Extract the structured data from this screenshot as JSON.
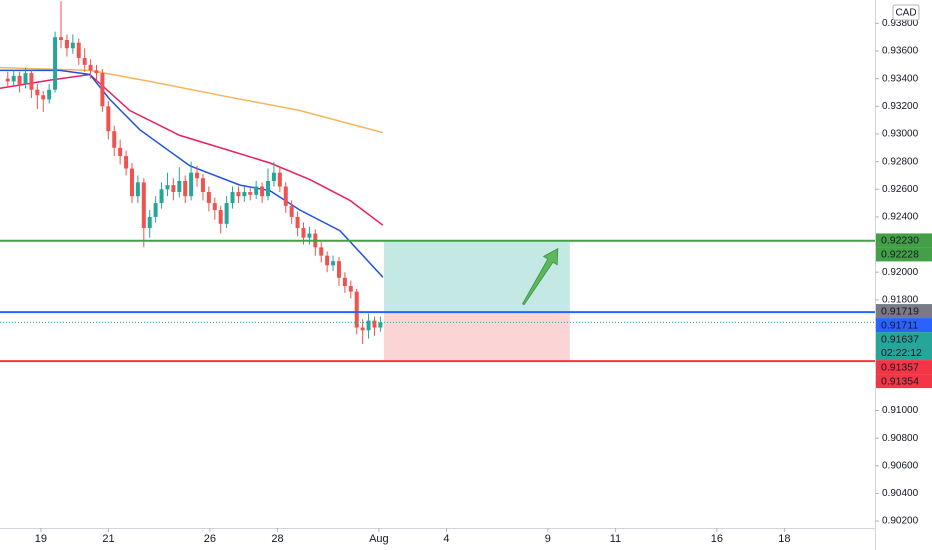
{
  "chart_data": {
    "type": "candlestick",
    "currency": "CAD",
    "xlim": [
      -1.21,
      24.68
    ],
    "ylim": [
      0.9015,
      0.93969
    ],
    "xticks": [
      {
        "value": 0,
        "label": "19"
      },
      {
        "value": 2,
        "label": "21"
      },
      {
        "value": 5,
        "label": "26"
      },
      {
        "value": 7,
        "label": "28"
      },
      {
        "value": 10,
        "label": "Aug"
      },
      {
        "value": 12,
        "label": "4"
      },
      {
        "value": 15,
        "label": "9"
      },
      {
        "value": 17,
        "label": "11"
      },
      {
        "value": 20,
        "label": "16"
      },
      {
        "value": 22,
        "label": "18"
      }
    ],
    "yticks": [
      {
        "value": 0.902,
        "label": "0.90200"
      },
      {
        "value": 0.904,
        "label": "0.90400"
      },
      {
        "value": 0.906,
        "label": "0.90600"
      },
      {
        "value": 0.908,
        "label": "0.90800"
      },
      {
        "value": 0.91,
        "label": "0.91000"
      },
      {
        "value": 0.912,
        "label": "0.91200"
      },
      {
        "value": 0.914,
        "label": "0.91400"
      },
      {
        "value": 0.916,
        "label": "0.91600"
      },
      {
        "value": 0.918,
        "label": "0.91800"
      },
      {
        "value": 0.92,
        "label": "0.92000"
      },
      {
        "value": 0.922,
        "label": "0.92200"
      },
      {
        "value": 0.924,
        "label": "0.92400"
      },
      {
        "value": 0.926,
        "label": "0.92600"
      },
      {
        "value": 0.928,
        "label": "0.92800"
      },
      {
        "value": 0.93,
        "label": "0.93000"
      },
      {
        "value": 0.932,
        "label": "0.93200"
      },
      {
        "value": 0.934,
        "label": "0.93400"
      },
      {
        "value": 0.936,
        "label": "0.93600"
      },
      {
        "value": 0.938,
        "label": "0.93800"
      }
    ],
    "up_color": "#26a69a",
    "down_color": "#ef5350",
    "x": [
      -0.98,
      -0.805,
      -0.63,
      -0.455,
      -0.28,
      -0.105,
      0.07,
      0.245,
      0.42,
      0.595,
      0.77,
      0.945,
      1.12,
      1.295,
      1.47,
      1.645,
      1.82,
      1.995,
      2.17,
      2.345,
      2.52,
      2.695,
      2.87,
      3.045,
      3.22,
      3.395,
      3.57,
      3.745,
      3.92,
      4.095,
      4.27,
      4.445,
      4.62,
      4.795,
      4.97,
      5.145,
      5.32,
      5.495,
      5.67,
      5.845,
      6.02,
      6.195,
      6.37,
      6.545,
      6.72,
      6.895,
      7.07,
      7.245,
      7.42,
      7.595,
      7.77,
      7.945,
      8.12,
      8.295,
      8.47,
      8.645,
      8.82,
      8.995,
      9.17,
      9.345,
      9.52,
      9.695,
      9.87,
      10.045
    ],
    "ohlc": [
      [
        0.934,
        0.9345,
        0.9334,
        0.9338
      ],
      [
        0.9338,
        0.9346,
        0.9335,
        0.9342
      ],
      [
        0.9342,
        0.9345,
        0.933,
        0.9336
      ],
      [
        0.9336,
        0.9348,
        0.9333,
        0.9344
      ],
      [
        0.9344,
        0.9346,
        0.9326,
        0.9332
      ],
      [
        0.9332,
        0.9336,
        0.9318,
        0.9328
      ],
      [
        0.9328,
        0.9331,
        0.9316,
        0.9325
      ],
      [
        0.9325,
        0.9336,
        0.9322,
        0.9332
      ],
      [
        0.9332,
        0.9374,
        0.933,
        0.937
      ],
      [
        0.937,
        0.9396,
        0.9362,
        0.9368
      ],
      [
        0.9368,
        0.9372,
        0.9356,
        0.9362
      ],
      [
        0.9362,
        0.9372,
        0.9358,
        0.9366
      ],
      [
        0.9366,
        0.9369,
        0.935,
        0.9355
      ],
      [
        0.9355,
        0.9362,
        0.9345,
        0.935
      ],
      [
        0.935,
        0.9354,
        0.934,
        0.9346
      ],
      [
        0.9346,
        0.935,
        0.9338,
        0.9344
      ],
      [
        0.9344,
        0.9347,
        0.9316,
        0.932
      ],
      [
        0.932,
        0.9324,
        0.9296,
        0.9302
      ],
      [
        0.9302,
        0.9306,
        0.9284,
        0.929
      ],
      [
        0.929,
        0.9296,
        0.9278,
        0.9284
      ],
      [
        0.9284,
        0.9288,
        0.927,
        0.9275
      ],
      [
        0.9275,
        0.9279,
        0.925,
        0.9255
      ],
      [
        0.9255,
        0.927,
        0.925,
        0.9265
      ],
      [
        0.9265,
        0.9268,
        0.9218,
        0.9232
      ],
      [
        0.9232,
        0.9245,
        0.9225,
        0.924
      ],
      [
        0.924,
        0.9255,
        0.9236,
        0.925
      ],
      [
        0.925,
        0.9265,
        0.9246,
        0.926
      ],
      [
        0.926,
        0.9272,
        0.9255,
        0.9263
      ],
      [
        0.9263,
        0.9268,
        0.9252,
        0.9258
      ],
      [
        0.9258,
        0.9276,
        0.9254,
        0.9266
      ],
      [
        0.9266,
        0.927,
        0.925,
        0.9255
      ],
      [
        0.9255,
        0.928,
        0.9252,
        0.9272
      ],
      [
        0.9272,
        0.9277,
        0.9262,
        0.9268
      ],
      [
        0.9268,
        0.9271,
        0.9252,
        0.9258
      ],
      [
        0.9258,
        0.9262,
        0.9244,
        0.925
      ],
      [
        0.925,
        0.9254,
        0.9238,
        0.9245
      ],
      [
        0.9245,
        0.9248,
        0.9228,
        0.9235
      ],
      [
        0.9235,
        0.9255,
        0.9232,
        0.925
      ],
      [
        0.925,
        0.9262,
        0.9246,
        0.9258
      ],
      [
        0.9258,
        0.9262,
        0.925,
        0.9255
      ],
      [
        0.9255,
        0.9262,
        0.9251,
        0.9258
      ],
      [
        0.9258,
        0.9261,
        0.9252,
        0.9256
      ],
      [
        0.9256,
        0.9266,
        0.9253,
        0.9262
      ],
      [
        0.9262,
        0.9265,
        0.925,
        0.9255
      ],
      [
        0.9255,
        0.9275,
        0.9252,
        0.9266
      ],
      [
        0.9266,
        0.928,
        0.9262,
        0.9272
      ],
      [
        0.9272,
        0.9276,
        0.9258,
        0.9262
      ],
      [
        0.9262,
        0.9265,
        0.9243,
        0.9248
      ],
      [
        0.9248,
        0.9252,
        0.9235,
        0.924
      ],
      [
        0.924,
        0.9244,
        0.9226,
        0.9232
      ],
      [
        0.9232,
        0.9236,
        0.922,
        0.9225
      ],
      [
        0.9225,
        0.9233,
        0.922,
        0.9228
      ],
      [
        0.9228,
        0.9231,
        0.9212,
        0.9218
      ],
      [
        0.9218,
        0.9222,
        0.9207,
        0.9212
      ],
      [
        0.9212,
        0.9215,
        0.92,
        0.9205
      ],
      [
        0.9205,
        0.9212,
        0.9201,
        0.9208
      ],
      [
        0.9208,
        0.9211,
        0.919,
        0.9196
      ],
      [
        0.9196,
        0.92,
        0.9185,
        0.919
      ],
      [
        0.919,
        0.9194,
        0.9181,
        0.9186
      ],
      [
        0.9186,
        0.9188,
        0.9155,
        0.916
      ],
      [
        0.916,
        0.9166,
        0.9148,
        0.9158
      ],
      [
        0.9158,
        0.917,
        0.9152,
        0.9165
      ],
      [
        0.9165,
        0.9168,
        0.9154,
        0.916
      ],
      [
        0.916,
        0.9168,
        0.9157,
        0.91637
      ]
    ],
    "lines": [
      {
        "color": "#f7b45a",
        "x": [
          -1.21,
          1.45,
          3.22,
          5.3,
          7.66,
          10.12
        ],
        "values": [
          0.9348,
          0.9346,
          0.9338,
          0.9328,
          0.9317,
          0.9301
        ]
      },
      {
        "color": "#e91e63",
        "x": [
          -1.21,
          0.27,
          1.45,
          2.63,
          4.11,
          5.59,
          6.78,
          7.96,
          9.14,
          10.12
        ],
        "values": [
          0.9333,
          0.9339,
          0.9343,
          0.9317,
          0.9299,
          0.9288,
          0.9279,
          0.9267,
          0.9252,
          0.9234
        ]
      },
      {
        "color": "#1e53e5",
        "x": [
          -1.21,
          0.56,
          1.45,
          2.04,
          2.93,
          4.41,
          5.89,
          6.78,
          7.66,
          8.85,
          10.12
        ],
        "values": [
          0.9346,
          0.9346,
          0.9343,
          0.9325,
          0.9303,
          0.9277,
          0.9263,
          0.9259,
          0.9245,
          0.923,
          0.91964
        ]
      }
    ],
    "levels": [
      {
        "value": 0.92228,
        "color": "#43a047"
      },
      {
        "value": 0.91711,
        "color": "#2962ff"
      },
      {
        "value": 0.91357,
        "color": "#f23645"
      }
    ],
    "position": {
      "x": [
        10.15,
        15.65
      ],
      "profit_color": "#c4e8e3",
      "loss_color": "#fbd5d5"
    },
    "last_price": 0.91637,
    "price_labels": [
      {
        "value": 0.9223,
        "label": "0.92230",
        "color": "#43a047"
      },
      {
        "value": 0.92228,
        "label": "0.92228",
        "color": "#43a047"
      },
      {
        "value": 0.91719,
        "label": "0.91719",
        "color": "#787b86"
      },
      {
        "value": 0.91711,
        "label": "0.91711",
        "color": "#2962ff"
      },
      {
        "value": 0.91637,
        "label": "0.91637",
        "color": "#26a69a",
        "countdown": "02:22:12"
      },
      {
        "value": 0.91357,
        "label": "0.91357",
        "color": "#f23645"
      },
      {
        "value": 0.91354,
        "label": "0.91354",
        "color": "#f23645"
      }
    ]
  }
}
